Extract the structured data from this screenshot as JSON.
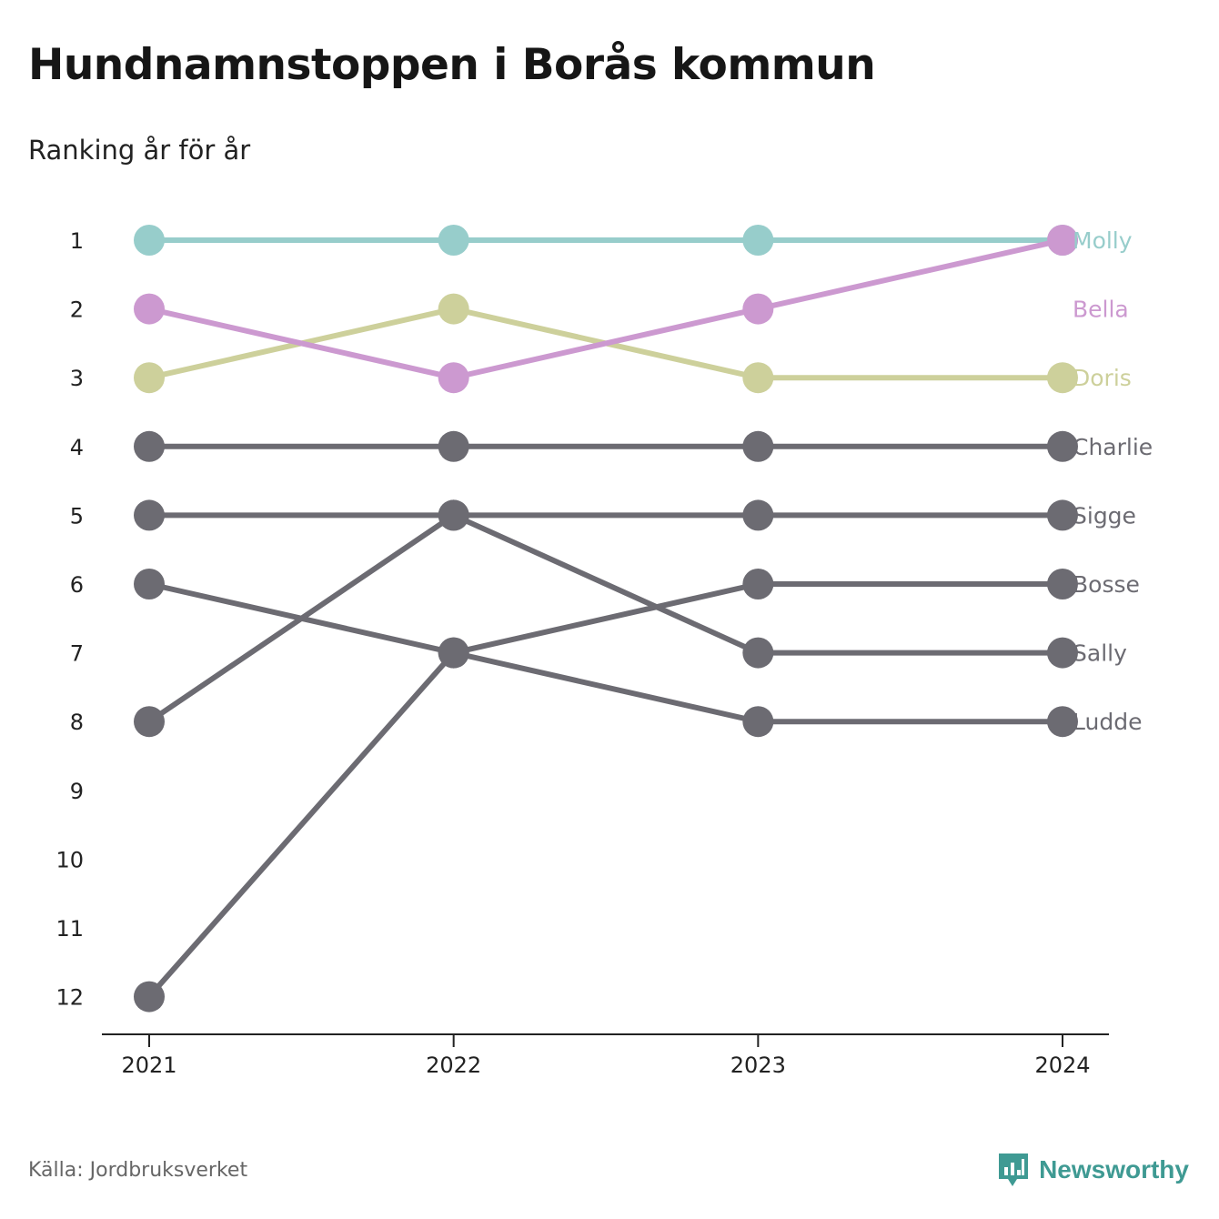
{
  "title": "Hundnamnstoppen i Borås kommun",
  "subtitle": "Ranking år för år",
  "source": "Källa: Jordbruksverket",
  "brand": {
    "name": "Newsworthy",
    "icon": "newsworthy-logo-icon",
    "color": "#3f9a93"
  },
  "chart_data": {
    "type": "line",
    "x": [
      "2021",
      "2022",
      "2023",
      "2024"
    ],
    "y_ticks": [
      "1",
      "2",
      "3",
      "4",
      "5",
      "6",
      "7",
      "8",
      "9",
      "10",
      "11",
      "12"
    ],
    "ylim": [
      1,
      12
    ],
    "y_inverted": true,
    "grid": false,
    "legend": "direct labels at right end of lines",
    "series": [
      {
        "name": "Molly",
        "values": [
          1,
          1,
          1,
          1
        ],
        "color": "#97cdcb"
      },
      {
        "name": "Bella",
        "values": [
          2,
          3,
          2,
          1
        ],
        "color": "#cc99d0"
      },
      {
        "name": "Doris",
        "values": [
          3,
          2,
          3,
          3
        ],
        "color": "#cdd09b"
      },
      {
        "name": "Charlie",
        "values": [
          4,
          4,
          4,
          4
        ],
        "color": "#6c6b72"
      },
      {
        "name": "Sigge",
        "values": [
          5,
          5,
          5,
          5
        ],
        "color": "#6c6b72"
      },
      {
        "name": "Bosse",
        "values": [
          12,
          7,
          6,
          6
        ],
        "color": "#6c6b72"
      },
      {
        "name": "Sally",
        "values": [
          8,
          5,
          7,
          7
        ],
        "color": "#6c6b72"
      },
      {
        "name": "Ludde",
        "values": [
          6,
          7,
          8,
          8
        ],
        "color": "#6c6b72"
      }
    ]
  }
}
